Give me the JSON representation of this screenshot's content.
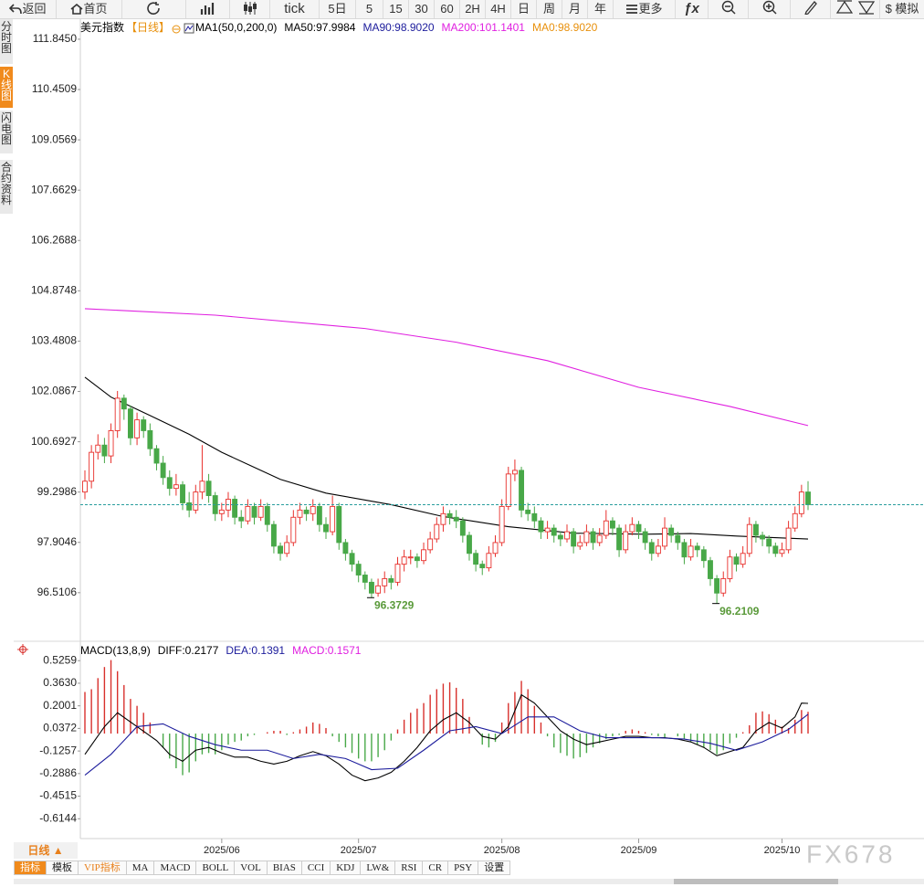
{
  "toolbar": {
    "buttons": [
      "返回",
      "首页",
      "tick",
      "5日",
      "5",
      "15",
      "30",
      "60",
      "2H",
      "4H",
      "日",
      "周",
      "月",
      "年",
      "更多",
      "ƒx",
      "$ 模拟"
    ]
  },
  "sidebar": {
    "tabs": [
      "分时图",
      "K线图",
      "闪电图",
      "合约资料"
    ]
  },
  "chart_data": [
    {
      "type": "candlestick",
      "title": "美元指数",
      "period": "【日线】",
      "indicator": "MA1(50,0,200,0)",
      "up_color": "#e8302c",
      "down_color": "#48a848",
      "last_price_color": "#2a9d9d",
      "ylim": [
        96.0,
        112.4
      ],
      "yticks": [
        {
          "value": 111.845,
          "label": "111.8450"
        },
        110.4509,
        109.0569,
        107.6629,
        106.2688,
        104.8748,
        103.4808,
        102.0867,
        100.6927,
        99.2986,
        97.9046,
        96.5106
      ],
      "categories": [
        null,
        null,
        null,
        null,
        null,
        null,
        null,
        null,
        null,
        null,
        null,
        null,
        null,
        null,
        null,
        null,
        null,
        null,
        null,
        null,
        null,
        "2025/06",
        null,
        null,
        null,
        null,
        null,
        null,
        null,
        null,
        null,
        null,
        null,
        null,
        null,
        null,
        null,
        null,
        null,
        null,
        null,
        null,
        "2025/07",
        null,
        null,
        null,
        null,
        null,
        null,
        null,
        null,
        null,
        null,
        null,
        null,
        null,
        null,
        null,
        null,
        null,
        null,
        null,
        null,
        null,
        "2025/08",
        null,
        null,
        null,
        null,
        null,
        null,
        null,
        null,
        null,
        null,
        null,
        null,
        null,
        null,
        null,
        null,
        null,
        null,
        null,
        null,
        "2025/09",
        null,
        null,
        null,
        null,
        null,
        null,
        null,
        null,
        null,
        null,
        null,
        null,
        null,
        null,
        null,
        null,
        null,
        null,
        null,
        null,
        null,
        "2025/10",
        null,
        null,
        null,
        null
      ],
      "ohlc": [
        [
          99.3,
          99.9,
          99.1,
          99.6
        ],
        [
          99.6,
          100.6,
          99.4,
          100.4
        ],
        [
          100.4,
          100.9,
          100.2,
          100.6
        ],
        [
          100.6,
          100.8,
          100.1,
          100.3
        ],
        [
          100.3,
          101.2,
          100.1,
          101.0
        ],
        [
          101.0,
          102.1,
          100.8,
          101.9
        ],
        [
          101.9,
          102.0,
          101.3,
          101.6
        ],
        [
          101.6,
          101.7,
          100.6,
          100.8
        ],
        [
          100.8,
          101.5,
          100.6,
          101.3
        ],
        [
          101.3,
          101.4,
          100.8,
          101.0
        ],
        [
          101.0,
          101.2,
          100.3,
          100.5
        ],
        [
          100.5,
          100.6,
          99.9,
          100.1
        ],
        [
          100.1,
          100.3,
          99.5,
          99.7
        ],
        [
          99.7,
          99.9,
          99.2,
          99.4
        ],
        [
          99.4,
          99.8,
          99.2,
          99.5
        ],
        [
          99.5,
          99.6,
          98.8,
          99.0
        ],
        [
          99.0,
          99.3,
          98.6,
          98.8
        ],
        [
          98.8,
          99.5,
          98.7,
          99.3
        ],
        [
          99.3,
          100.6,
          99.1,
          99.6
        ],
        [
          99.6,
          99.8,
          99.0,
          99.2
        ],
        [
          99.2,
          99.3,
          98.5,
          98.7
        ],
        [
          98.7,
          99.0,
          98.5,
          98.8
        ],
        [
          98.8,
          99.3,
          98.6,
          99.1
        ],
        [
          99.1,
          99.2,
          98.4,
          98.6
        ],
        [
          98.6,
          98.8,
          98.3,
          98.5
        ],
        [
          98.5,
          99.1,
          98.4,
          98.9
        ],
        [
          98.9,
          99.0,
          98.4,
          98.6
        ],
        [
          98.6,
          99.1,
          98.5,
          98.9
        ],
        [
          98.9,
          99.0,
          98.2,
          98.4
        ],
        [
          98.4,
          98.5,
          97.6,
          97.8
        ],
        [
          97.8,
          97.9,
          97.4,
          97.6
        ],
        [
          97.6,
          98.1,
          97.5,
          97.9
        ],
        [
          97.9,
          98.8,
          97.8,
          98.6
        ],
        [
          98.6,
          99.0,
          98.4,
          98.8
        ],
        [
          98.8,
          98.9,
          98.5,
          98.7
        ],
        [
          98.7,
          99.1,
          98.5,
          98.9
        ],
        [
          98.9,
          99.0,
          98.2,
          98.4
        ],
        [
          98.4,
          98.6,
          98.0,
          98.2
        ],
        [
          98.2,
          99.2,
          98.1,
          98.9
        ],
        [
          98.9,
          99.0,
          97.7,
          97.9
        ],
        [
          97.9,
          98.0,
          97.4,
          97.6
        ],
        [
          97.6,
          97.7,
          97.1,
          97.3
        ],
        [
          97.3,
          97.4,
          96.8,
          97.0
        ],
        [
          97.0,
          97.1,
          96.6,
          96.8
        ],
        [
          96.8,
          96.9,
          96.3729,
          96.5
        ],
        [
          96.5,
          96.9,
          96.4,
          96.7
        ],
        [
          96.7,
          97.1,
          96.5,
          96.9
        ],
        [
          96.9,
          97.0,
          96.6,
          96.8
        ],
        [
          96.8,
          97.5,
          96.7,
          97.3
        ],
        [
          97.3,
          97.7,
          97.1,
          97.5
        ],
        [
          97.5,
          97.7,
          97.3,
          97.5
        ],
        [
          97.5,
          97.6,
          97.2,
          97.4
        ],
        [
          97.4,
          97.9,
          97.3,
          97.7
        ],
        [
          97.7,
          98.2,
          97.6,
          98.0
        ],
        [
          98.0,
          98.6,
          97.9,
          98.4
        ],
        [
          98.4,
          98.9,
          98.2,
          98.7
        ],
        [
          98.7,
          98.8,
          98.4,
          98.6
        ],
        [
          98.6,
          98.8,
          98.3,
          98.5
        ],
        [
          98.5,
          98.6,
          97.9,
          98.1
        ],
        [
          98.1,
          98.2,
          97.4,
          97.6
        ],
        [
          97.6,
          97.7,
          97.1,
          97.3
        ],
        [
          97.3,
          97.4,
          97.0,
          97.2
        ],
        [
          97.2,
          97.8,
          97.1,
          97.6
        ],
        [
          97.6,
          98.1,
          97.5,
          97.9
        ],
        [
          97.9,
          99.1,
          97.8,
          98.9
        ],
        [
          98.9,
          100.0,
          98.8,
          99.8
        ],
        [
          99.8,
          100.2,
          99.6,
          99.9
        ],
        [
          99.9,
          100.0,
          98.6,
          98.8
        ],
        [
          98.8,
          99.0,
          98.5,
          98.7
        ],
        [
          98.7,
          98.9,
          98.3,
          98.5
        ],
        [
          98.5,
          98.6,
          98.0,
          98.2
        ],
        [
          98.2,
          98.5,
          98.0,
          98.3
        ],
        [
          98.3,
          98.4,
          97.9,
          98.1
        ],
        [
          98.1,
          98.2,
          97.8,
          98.0
        ],
        [
          98.0,
          98.4,
          97.9,
          98.2
        ],
        [
          98.2,
          98.3,
          97.6,
          97.8
        ],
        [
          97.8,
          98.1,
          97.7,
          97.9
        ],
        [
          97.9,
          98.4,
          97.8,
          98.2
        ],
        [
          98.2,
          98.3,
          97.7,
          97.9
        ],
        [
          97.9,
          98.3,
          97.8,
          98.1
        ],
        [
          98.1,
          98.8,
          98.0,
          98.5
        ],
        [
          98.5,
          98.6,
          98.1,
          98.3
        ],
        [
          98.3,
          98.4,
          97.5,
          97.7
        ],
        [
          97.7,
          98.4,
          97.6,
          98.2
        ],
        [
          98.2,
          98.6,
          98.1,
          98.4
        ],
        [
          98.4,
          98.5,
          98.0,
          98.2
        ],
        [
          98.2,
          98.3,
          97.7,
          97.9
        ],
        [
          97.9,
          98.0,
          97.4,
          97.6
        ],
        [
          97.6,
          98.0,
          97.5,
          97.8
        ],
        [
          97.8,
          98.6,
          97.7,
          98.3
        ],
        [
          98.3,
          98.4,
          97.9,
          98.1
        ],
        [
          98.1,
          98.2,
          97.7,
          97.9
        ],
        [
          97.9,
          98.0,
          97.3,
          97.5
        ],
        [
          97.5,
          98.0,
          97.4,
          97.8
        ],
        [
          97.8,
          97.9,
          97.5,
          97.7
        ],
        [
          97.7,
          97.8,
          97.2,
          97.4
        ],
        [
          97.4,
          97.5,
          96.7,
          96.9
        ],
        [
          96.9,
          97.0,
          96.2109,
          96.5
        ],
        [
          96.5,
          97.1,
          96.4,
          96.9
        ],
        [
          96.9,
          97.7,
          96.8,
          97.5
        ],
        [
          97.5,
          97.6,
          97.1,
          97.3
        ],
        [
          97.3,
          97.8,
          97.2,
          97.6
        ],
        [
          97.6,
          98.6,
          97.5,
          98.4
        ],
        [
          98.4,
          98.5,
          97.9,
          98.1
        ],
        [
          98.1,
          98.2,
          97.8,
          98.0
        ],
        [
          98.0,
          98.1,
          97.6,
          97.8
        ],
        [
          97.8,
          97.9,
          97.5,
          97.6
        ],
        [
          97.6,
          97.9,
          97.5,
          97.7
        ],
        [
          97.7,
          98.5,
          97.6,
          98.3
        ],
        [
          98.3,
          98.9,
          98.2,
          98.7
        ],
        [
          98.7,
          99.5,
          98.6,
          99.3
        ],
        [
          99.3,
          99.6,
          98.8,
          98.95
        ]
      ],
      "series": [
        {
          "name": "MA50:97.9984",
          "color": "#000000",
          "x": [
            0,
            4,
            10,
            16,
            21,
            30,
            37,
            47,
            55,
            65,
            75,
            86,
            93,
            100,
            111
          ],
          "values": [
            102.48,
            101.93,
            101.42,
            100.9,
            100.4,
            99.65,
            99.27,
            98.95,
            98.62,
            98.34,
            98.16,
            98.13,
            98.15,
            98.08,
            97.9984
          ]
        },
        {
          "name": "MA90:98.9020",
          "color": "#1c1c9c"
        },
        {
          "name": "MA200:101.1401",
          "color": "#e020e0",
          "x": [
            0,
            20,
            43,
            57,
            71,
            85,
            99,
            111
          ],
          "values": [
            104.38,
            104.2,
            103.83,
            103.45,
            102.94,
            102.2,
            101.67,
            101.1401
          ]
        },
        {
          "name": "MA0:98.9020",
          "color": "#e8900c"
        }
      ]
    },
    {
      "type": "macd",
      "title": "MACD(13,8,9)",
      "up_color": "#d8302c",
      "down_color": "#48a848",
      "ylim": [
        -0.675,
        0.58
      ],
      "yticks": [
        0.5259,
        {
          "value": 0.363,
          "label": "0.3630"
        },
        0.2001,
        0.0372,
        -0.1257,
        -0.2886,
        -0.4515,
        -0.6144
      ],
      "series": [
        {
          "name": "DIFF:0.2177",
          "color": "#000000",
          "x": [
            0,
            3,
            5,
            8,
            11,
            13,
            15,
            17,
            19,
            21,
            23,
            25,
            27,
            29,
            31,
            33,
            35,
            37,
            39,
            41,
            43,
            45,
            47,
            49,
            51,
            53,
            55,
            57,
            59,
            61,
            63,
            65,
            67,
            69,
            71,
            73,
            75,
            77,
            79,
            81,
            83,
            85,
            87,
            89,
            91,
            93,
            95,
            97,
            99,
            101,
            103,
            105,
            107,
            109,
            110,
            111
          ],
          "values": [
            -0.15,
            0.05,
            0.15,
            0.05,
            -0.05,
            -0.15,
            -0.2,
            -0.12,
            -0.1,
            -0.14,
            -0.17,
            -0.17,
            -0.2,
            -0.22,
            -0.2,
            -0.16,
            -0.13,
            -0.16,
            -0.22,
            -0.3,
            -0.34,
            -0.32,
            -0.28,
            -0.2,
            -0.1,
            0.02,
            0.1,
            0.15,
            0.08,
            -0.02,
            -0.04,
            0.05,
            0.28,
            0.22,
            0.12,
            0.02,
            -0.04,
            -0.08,
            -0.06,
            -0.04,
            -0.02,
            -0.02,
            -0.03,
            -0.03,
            -0.04,
            -0.06,
            -0.1,
            -0.16,
            -0.13,
            -0.1,
            0.02,
            0.08,
            0.04,
            0.12,
            0.22,
            0.2177
          ]
        },
        {
          "name": "DEA:0.1391",
          "color": "#1c1c9c",
          "x": [
            0,
            4,
            8,
            12,
            16,
            20,
            24,
            28,
            32,
            36,
            40,
            44,
            48,
            52,
            56,
            60,
            64,
            68,
            72,
            76,
            80,
            84,
            88,
            92,
            96,
            100,
            104,
            108,
            111
          ],
          "values": [
            -0.3,
            -0.15,
            0.05,
            0.07,
            -0.02,
            -0.08,
            -0.12,
            -0.12,
            -0.18,
            -0.15,
            -0.18,
            -0.26,
            -0.25,
            -0.12,
            0.02,
            0.05,
            0,
            0.12,
            0.12,
            0.02,
            -0.03,
            -0.03,
            -0.03,
            -0.04,
            -0.07,
            -0.12,
            -0.06,
            0.03,
            0.1391
          ]
        },
        {
          "name": "MACD:0.1571",
          "color": "#e020e0",
          "type": "histogram",
          "values": [
            0.3,
            0.32,
            0.4,
            0.48,
            0.53,
            0.45,
            0.35,
            0.25,
            0.2,
            0.15,
            0.08,
            0,
            -0.1,
            -0.18,
            -0.25,
            -0.3,
            -0.28,
            -0.2,
            -0.15,
            -0.14,
            -0.15,
            -0.12,
            -0.08,
            -0.06,
            -0.05,
            -0.02,
            -0.01,
            0,
            0.01,
            0.02,
            0.02,
            -0.01,
            0.01,
            0.03,
            0.05,
            0.08,
            0.07,
            0.04,
            -0.02,
            -0.06,
            -0.1,
            -0.14,
            -0.18,
            -0.2,
            -0.2,
            -0.17,
            -0.12,
            -0.05,
            0.03,
            0.1,
            0.15,
            0.18,
            0.22,
            0.28,
            0.32,
            0.36,
            0.37,
            0.33,
            0.25,
            0.12,
            0,
            -0.08,
            -0.1,
            -0.06,
            0.08,
            0.22,
            0.3,
            0.38,
            0.32,
            0.2,
            0.08,
            -0.02,
            -0.1,
            -0.14,
            -0.16,
            -0.18,
            -0.17,
            -0.14,
            -0.1,
            -0.07,
            -0.04,
            -0.02,
            -0.01,
            0.02,
            0.03,
            0.02,
            0.01,
            -0.01,
            -0.02,
            -0.03,
            0,
            -0.02,
            -0.04,
            -0.06,
            -0.08,
            -0.1,
            -0.12,
            -0.15,
            -0.12,
            -0.07,
            -0.03,
            0.01,
            0.06,
            0.15,
            0.16,
            0.14,
            0.1,
            0.05,
            0.04,
            0.1,
            0.17,
            0.1571
          ]
        }
      ]
    }
  ],
  "period_tab": "日线 ▲",
  "indicator_tabs": [
    "指标",
    "模板",
    "VIP指标",
    "MA",
    "MACD",
    "BOLL",
    "VOL",
    "BIAS",
    "CCI",
    "KDJ",
    "LW&",
    "RSI",
    "CR",
    "PSY",
    "设置"
  ],
  "watermark": "FX678"
}
